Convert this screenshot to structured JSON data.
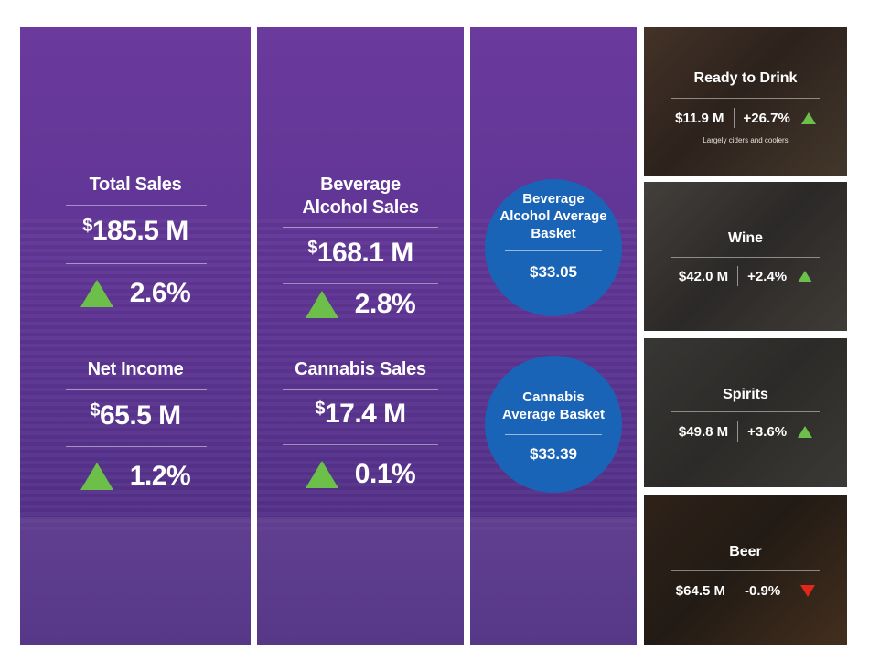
{
  "colors": {
    "panel_purple": "#5d3493",
    "circle_blue": "#1a64b8",
    "up_green": "#6cc04a",
    "down_red": "#e1261c"
  },
  "panel1": {
    "total_sales": {
      "label": "Total Sales",
      "currency": "$",
      "value": "185.5 M",
      "change": "2.6%"
    },
    "net_income": {
      "label": "Net Income",
      "currency": "$",
      "value": "65.5 M",
      "change": "1.2%"
    }
  },
  "panel2": {
    "beverage_alcohol": {
      "label_line1": "Beverage",
      "label_line2": "Alcohol Sales",
      "currency": "$",
      "value": "168.1 M",
      "change": "2.8%"
    },
    "cannabis": {
      "label": "Cannabis Sales",
      "currency": "$",
      "value": "17.4 M",
      "change": "0.1%"
    }
  },
  "panel3": {
    "bev_basket": {
      "line1": "Beverage",
      "line2": "Alcohol Average",
      "line3": "Basket",
      "value": "$33.05"
    },
    "cannabis_basket": {
      "line1": "Cannabis",
      "line2": "Average Basket",
      "value": "$33.39"
    }
  },
  "categories": [
    {
      "title": "Ready to Drink",
      "value": "$11.9 M",
      "change": "+26.7%",
      "direction": "up",
      "note": "Largely ciders and coolers",
      "icon": "triangle-up-icon"
    },
    {
      "title": "Wine",
      "value": "$42.0 M",
      "change": "+2.4%",
      "direction": "up",
      "icon": "triangle-up-icon"
    },
    {
      "title": "Spirits",
      "value": "$49.8 M",
      "change": "+3.6%",
      "direction": "up",
      "icon": "triangle-up-icon"
    },
    {
      "title": "Beer",
      "value": "$64.5 M",
      "change": "-0.9%",
      "direction": "down",
      "icon": "triangle-down-icon"
    }
  ]
}
